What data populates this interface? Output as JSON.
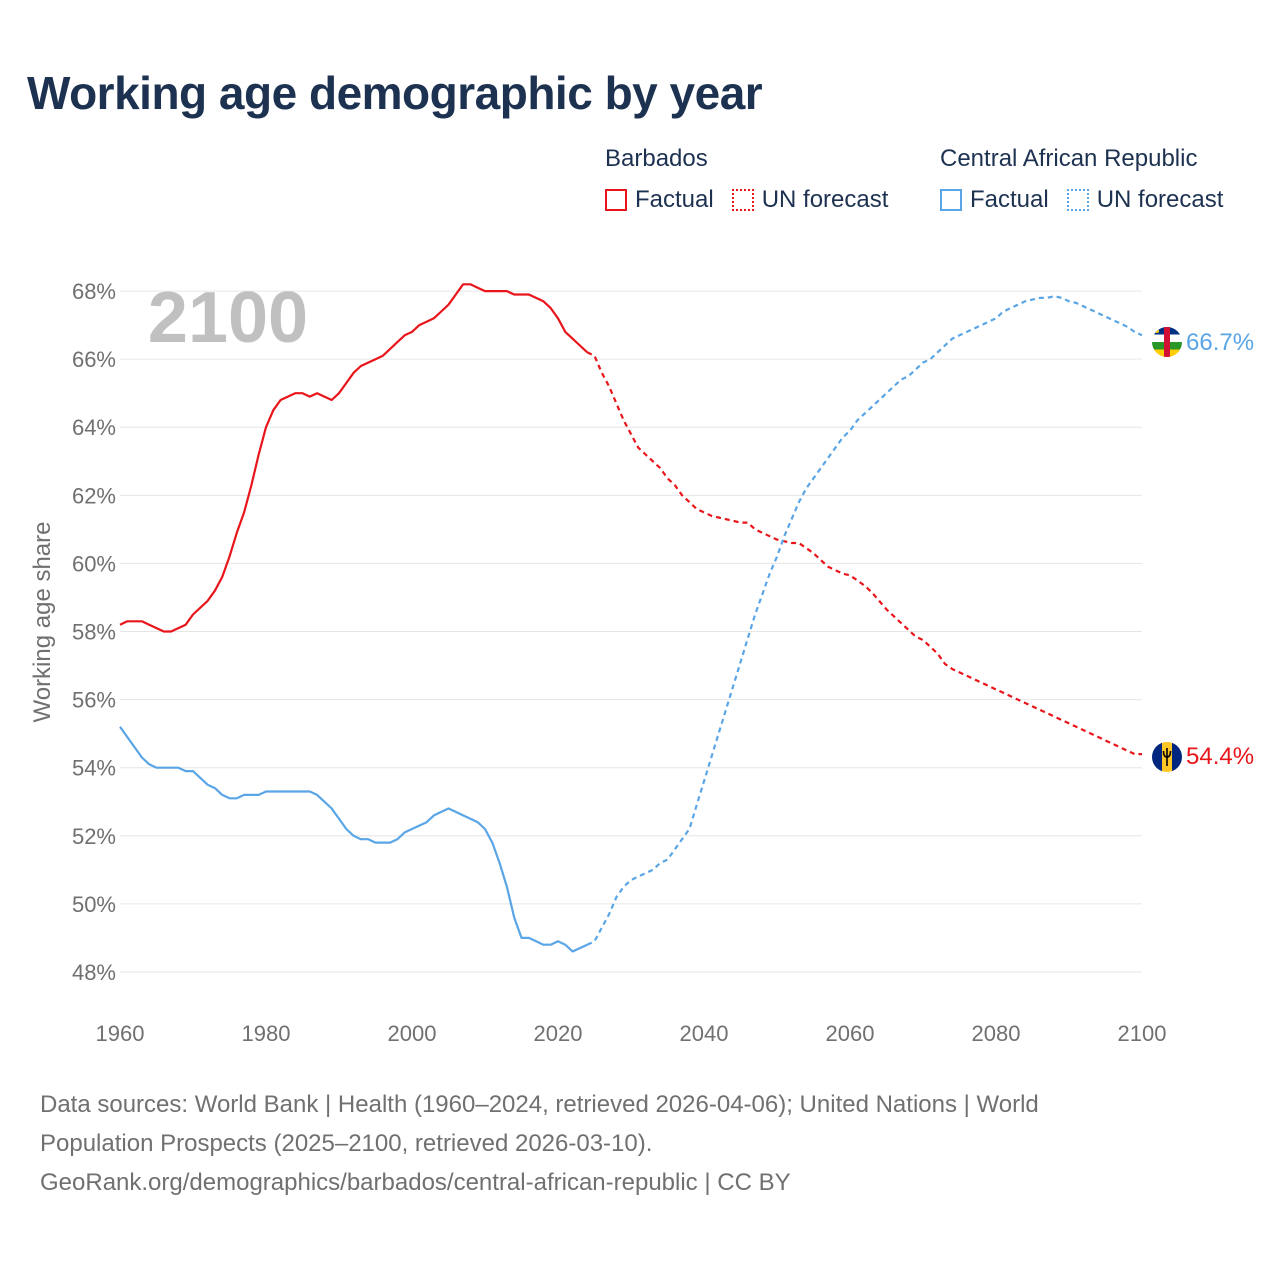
{
  "chart_data": {
    "type": "line",
    "title": "Working age demographic by year",
    "ylabel": "Working age share",
    "xlabel": "",
    "xlim": [
      1960,
      2100
    ],
    "ylim": [
      47,
      69.5
    ],
    "x_ticks": [
      1960,
      1980,
      2000,
      2020,
      2040,
      2060,
      2080,
      2100
    ],
    "x_tick_labels": [
      "1960",
      "1980",
      "2000",
      "2020",
      "2040",
      "2060",
      "2080",
      "2100"
    ],
    "y_ticks": [
      48,
      50,
      52,
      54,
      56,
      58,
      60,
      62,
      64,
      66,
      68
    ],
    "y_tick_labels": [
      "48%",
      "50%",
      "52%",
      "54%",
      "56%",
      "58%",
      "60%",
      "62%",
      "64%",
      "66%",
      "68%"
    ],
    "year_watermark": "2100",
    "grid": true,
    "series": [
      {
        "name": "Barbados",
        "color": "#e8151b",
        "end_label": "54.4%",
        "factual": {
          "label": "Factual",
          "x": [
            1960,
            1961,
            1962,
            1963,
            1964,
            1965,
            1966,
            1967,
            1968,
            1969,
            1970,
            1971,
            1972,
            1973,
            1974,
            1975,
            1976,
            1977,
            1978,
            1979,
            1980,
            1981,
            1982,
            1983,
            1984,
            1985,
            1986,
            1987,
            1988,
            1989,
            1990,
            1991,
            1992,
            1993,
            1994,
            1995,
            1996,
            1997,
            1998,
            1999,
            2000,
            2001,
            2002,
            2003,
            2004,
            2005,
            2006,
            2007,
            2008,
            2009,
            2010,
            2011,
            2012,
            2013,
            2014,
            2015,
            2016,
            2017,
            2018,
            2019,
            2020,
            2021,
            2022,
            2023,
            2024
          ],
          "y": [
            58.2,
            58.3,
            58.3,
            58.3,
            58.2,
            58.1,
            58.0,
            58.0,
            58.1,
            58.2,
            58.5,
            58.7,
            58.9,
            59.2,
            59.6,
            60.2,
            60.9,
            61.5,
            62.3,
            63.2,
            64.0,
            64.5,
            64.8,
            64.9,
            65.0,
            65.0,
            64.9,
            65.0,
            64.9,
            64.8,
            65.0,
            65.3,
            65.6,
            65.8,
            65.9,
            66.0,
            66.1,
            66.3,
            66.5,
            66.7,
            66.8,
            67.0,
            67.1,
            67.2,
            67.4,
            67.6,
            67.9,
            68.2,
            68.2,
            68.1,
            68.0,
            68.0,
            68.0,
            68.0,
            67.9,
            67.9,
            67.9,
            67.8,
            67.7,
            67.5,
            67.2,
            66.8,
            66.6,
            66.4,
            66.2
          ]
        },
        "forecast": {
          "label": "UN forecast",
          "x": [
            2024,
            2025,
            2026,
            2027,
            2028,
            2029,
            2030,
            2031,
            2032,
            2033,
            2034,
            2035,
            2036,
            2037,
            2038,
            2039,
            2040,
            2041,
            2042,
            2043,
            2044,
            2045,
            2046,
            2047,
            2048,
            2049,
            2050,
            2051,
            2052,
            2053,
            2054,
            2055,
            2056,
            2057,
            2058,
            2059,
            2060,
            2061,
            2062,
            2063,
            2064,
            2065,
            2066,
            2067,
            2068,
            2069,
            2070,
            2071,
            2072,
            2073,
            2074,
            2075,
            2076,
            2077,
            2078,
            2079,
            2080,
            2081,
            2082,
            2083,
            2084,
            2085,
            2086,
            2087,
            2088,
            2089,
            2090,
            2091,
            2092,
            2093,
            2094,
            2095,
            2096,
            2097,
            2098,
            2099,
            2100
          ],
          "y": [
            66.2,
            66.1,
            65.6,
            65.2,
            64.7,
            64.2,
            63.8,
            63.4,
            63.2,
            63.0,
            62.8,
            62.5,
            62.3,
            62.0,
            61.8,
            61.6,
            61.5,
            61.4,
            61.35,
            61.3,
            61.25,
            61.2,
            61.2,
            61.0,
            60.9,
            60.8,
            60.7,
            60.65,
            60.6,
            60.6,
            60.45,
            60.3,
            60.1,
            59.9,
            59.8,
            59.7,
            59.65,
            59.5,
            59.35,
            59.15,
            58.9,
            58.65,
            58.45,
            58.25,
            58.05,
            57.85,
            57.75,
            57.55,
            57.35,
            57.05,
            56.9,
            56.8,
            56.7,
            56.6,
            56.5,
            56.4,
            56.3,
            56.2,
            56.1,
            56.0,
            55.9,
            55.8,
            55.7,
            55.6,
            55.5,
            55.4,
            55.3,
            55.2,
            55.1,
            55.0,
            54.9,
            54.8,
            54.7,
            54.6,
            54.5,
            54.4,
            54.4
          ]
        }
      },
      {
        "name": "Central African Republic",
        "color": "#5aa5e6",
        "end_label": "66.7%",
        "factual": {
          "label": "Factual",
          "x": [
            1960,
            1961,
            1962,
            1963,
            1964,
            1965,
            1966,
            1967,
            1968,
            1969,
            1970,
            1971,
            1972,
            1973,
            1974,
            1975,
            1976,
            1977,
            1978,
            1979,
            1980,
            1981,
            1982,
            1983,
            1984,
            1985,
            1986,
            1987,
            1988,
            1989,
            1990,
            1991,
            1992,
            1993,
            1994,
            1995,
            1996,
            1997,
            1998,
            1999,
            2000,
            2001,
            2002,
            2003,
            2004,
            2005,
            2006,
            2007,
            2008,
            2009,
            2010,
            2011,
            2012,
            2013,
            2014,
            2015,
            2016,
            2017,
            2018,
            2019,
            2020,
            2021,
            2022,
            2023,
            2024
          ],
          "y": [
            55.2,
            54.9,
            54.6,
            54.3,
            54.1,
            54.0,
            54.0,
            54.0,
            54.0,
            53.9,
            53.9,
            53.7,
            53.5,
            53.4,
            53.2,
            53.1,
            53.1,
            53.2,
            53.2,
            53.2,
            53.3,
            53.3,
            53.3,
            53.3,
            53.3,
            53.3,
            53.3,
            53.2,
            53.0,
            52.8,
            52.5,
            52.2,
            52.0,
            51.9,
            51.9,
            51.8,
            51.8,
            51.8,
            51.9,
            52.1,
            52.2,
            52.3,
            52.4,
            52.6,
            52.7,
            52.8,
            52.7,
            52.6,
            52.5,
            52.4,
            52.2,
            51.8,
            51.2,
            50.5,
            49.6,
            49.0,
            49.0,
            48.9,
            48.8,
            48.8,
            48.9,
            48.8,
            48.6,
            48.7,
            48.8
          ]
        },
        "forecast": {
          "label": "UN forecast",
          "x": [
            2024,
            2025,
            2026,
            2027,
            2028,
            2029,
            2030,
            2031,
            2032,
            2033,
            2034,
            2035,
            2036,
            2037,
            2038,
            2039,
            2040,
            2041,
            2042,
            2043,
            2044,
            2045,
            2046,
            2047,
            2048,
            2049,
            2050,
            2051,
            2052,
            2053,
            2054,
            2055,
            2056,
            2057,
            2058,
            2059,
            2060,
            2061,
            2062,
            2063,
            2064,
            2065,
            2066,
            2067,
            2068,
            2069,
            2070,
            2071,
            2072,
            2073,
            2074,
            2075,
            2076,
            2077,
            2078,
            2079,
            2080,
            2081,
            2082,
            2083,
            2084,
            2085,
            2086,
            2087,
            2088,
            2089,
            2090,
            2091,
            2092,
            2093,
            2094,
            2095,
            2096,
            2097,
            2098,
            2099,
            2100
          ],
          "y": [
            48.8,
            48.9,
            49.3,
            49.7,
            50.2,
            50.5,
            50.7,
            50.8,
            50.9,
            51.0,
            51.2,
            51.3,
            51.6,
            51.9,
            52.2,
            52.9,
            53.6,
            54.3,
            55.0,
            55.7,
            56.4,
            57.1,
            57.8,
            58.5,
            59.1,
            59.7,
            60.2,
            60.8,
            61.3,
            61.8,
            62.2,
            62.5,
            62.8,
            63.1,
            63.4,
            63.7,
            63.9,
            64.2,
            64.4,
            64.6,
            64.8,
            65.0,
            65.2,
            65.4,
            65.5,
            65.7,
            65.9,
            66.0,
            66.2,
            66.4,
            66.6,
            66.7,
            66.8,
            66.9,
            67.0,
            67.1,
            67.2,
            67.4,
            67.5,
            67.6,
            67.7,
            67.75,
            67.8,
            67.8,
            67.85,
            67.8,
            67.7,
            67.65,
            67.55,
            67.45,
            67.35,
            67.25,
            67.15,
            67.05,
            66.95,
            66.8,
            66.7
          ]
        }
      }
    ]
  },
  "legend": {
    "groups": [
      {
        "country": "Barbados",
        "color": "#e8151b",
        "factual_label": "Factual",
        "forecast_label": "UN forecast"
      },
      {
        "country": "Central African Republic",
        "color": "#5aa5e6",
        "factual_label": "Factual",
        "forecast_label": "UN forecast"
      }
    ]
  },
  "footer": {
    "line1": "Data sources: World Bank | Health (1960–2024, retrieved 2026-04-06); United Nations | World",
    "line2": "Population Prospects (2025–2100, retrieved 2026-03-10).",
    "line3": "GeoRank.org/demographics/barbados/central-african-republic | CC BY"
  },
  "colors": {
    "title": "#1d3251",
    "axis_text": "#707070",
    "grid": "#e6e6e6",
    "watermark": "#c0c0c0"
  }
}
